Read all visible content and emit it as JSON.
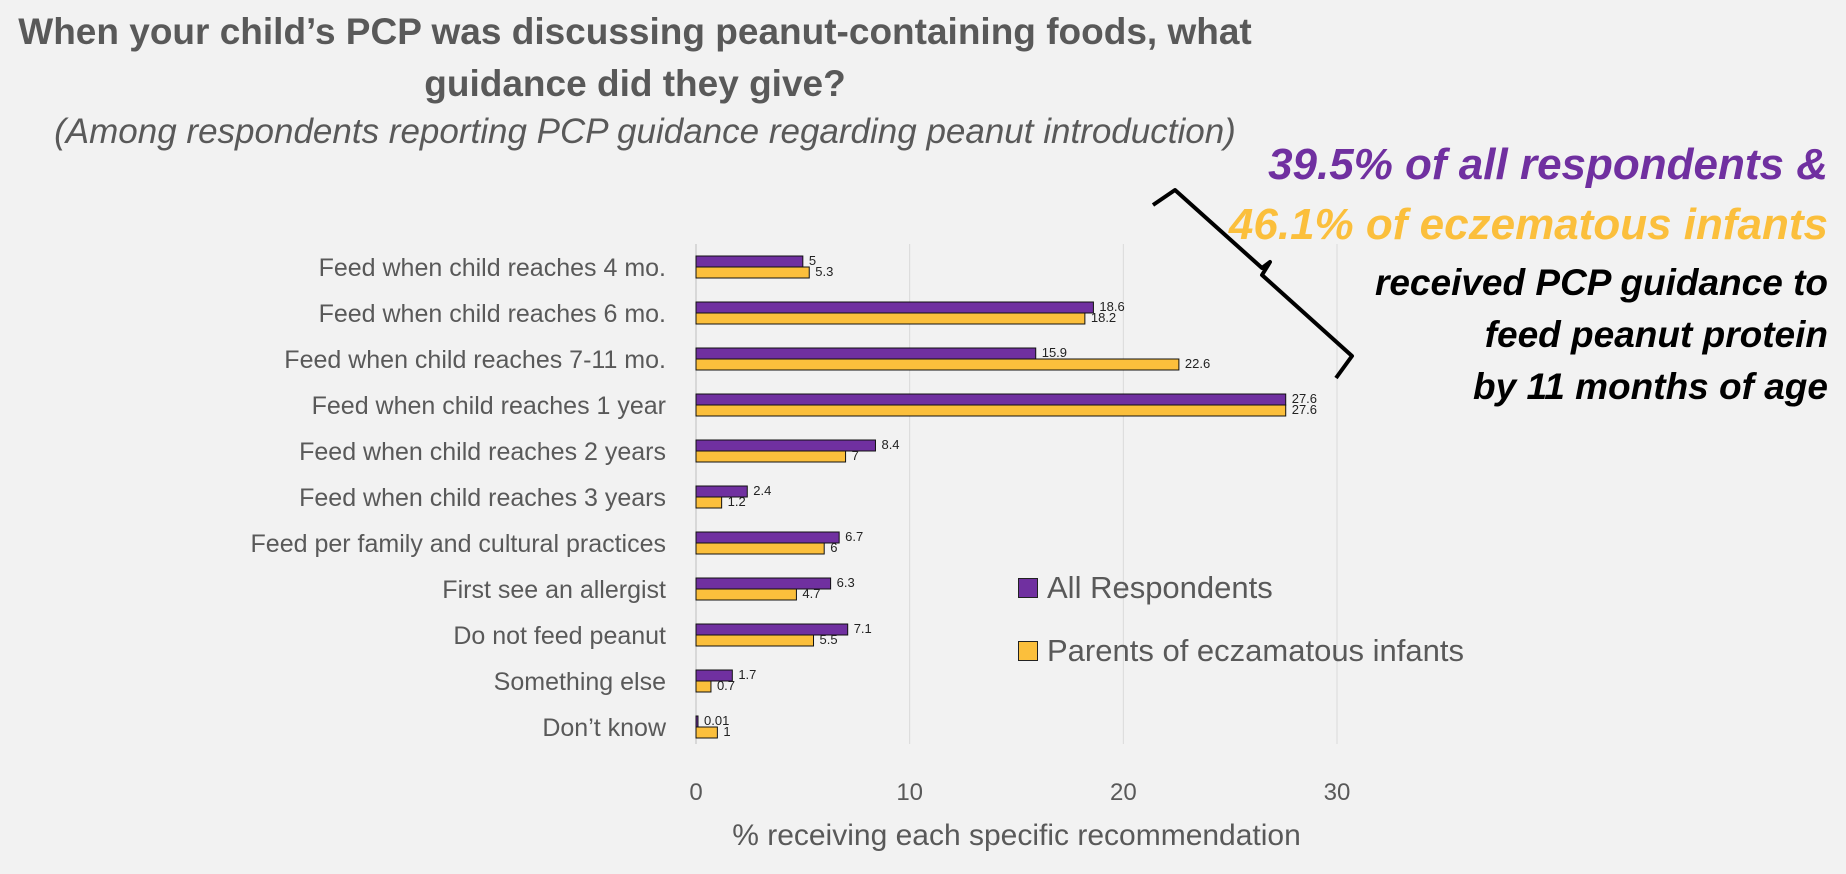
{
  "header": {
    "title_line1": "When your child’s PCP was discussing peanut-containing foods, what",
    "title_line2": "guidance did they give?",
    "subtitle": "(Among respondents reporting PCP guidance regarding peanut introduction)"
  },
  "callout": {
    "line1": "39.5% of all respondents &",
    "line2": "46.1% of eczematous infants",
    "line3": "received PCP guidance to",
    "line4": "feed peanut protein",
    "line5": "by 11 months of age",
    "line1_color": "#7030a0",
    "line2_color": "#fbbf3c"
  },
  "legend": {
    "placement": "right-lower",
    "items": [
      {
        "label": "All Respondents",
        "color": "#7030a0"
      },
      {
        "label": "Parents of eczamatous infants",
        "color": "#fbbf3c"
      }
    ]
  },
  "chart_data": {
    "type": "bar",
    "orientation": "horizontal",
    "categories": [
      "Feed when child reaches 4 mo.",
      "Feed when child reaches 6 mo.",
      "Feed when  child reaches 7-11 mo.",
      "Feed when child reaches 1 year",
      "Feed when child reaches 2 years",
      "Feed when  child reaches 3 years",
      "Feed per family and cultural practices",
      "First see an allergist",
      "Do not feed peanut",
      "Something else",
      "Don’t know"
    ],
    "series": [
      {
        "name": "All Respondents",
        "color": "#7030a0",
        "values": [
          5,
          18.6,
          15.9,
          27.6,
          8.4,
          2.4,
          6.7,
          6.3,
          7.1,
          1.7,
          0.01
        ]
      },
      {
        "name": "Parents of eczamatous infants",
        "color": "#fbbf3c",
        "values": [
          5.3,
          18.2,
          22.6,
          27.6,
          7,
          1.2,
          6,
          4.7,
          5.5,
          0.7,
          1
        ]
      }
    ],
    "xlabel": "% receiving each specific recommendation",
    "xlim": [
      0,
      30
    ],
    "xticks": [
      0,
      10,
      20,
      30
    ],
    "grid": true
  }
}
